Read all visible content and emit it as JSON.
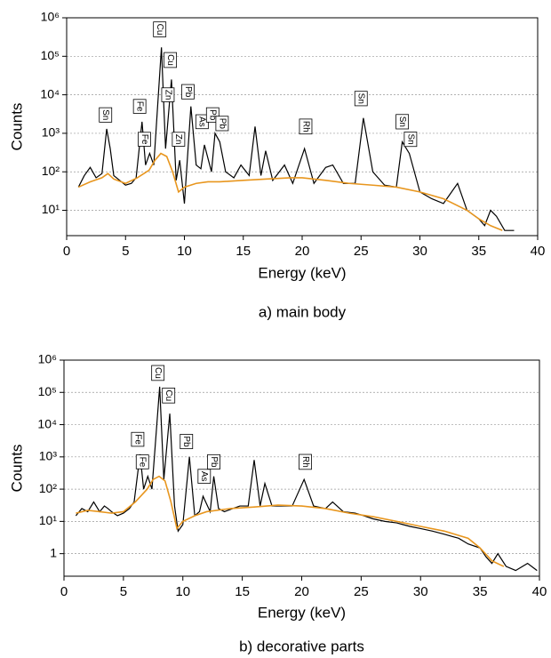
{
  "chart_data": [
    {
      "type": "line",
      "xlabel": "Energy (keV)",
      "ylabel": "Counts",
      "caption": "a) main body",
      "xlim": [
        0,
        40
      ],
      "xticks": [
        0,
        5,
        10,
        15,
        20,
        25,
        30,
        35,
        40
      ],
      "yscale": "log",
      "ylim": [
        2.2,
        1000000
      ],
      "yticks": [
        {
          "value": 10,
          "label": "10¹"
        },
        {
          "value": 100,
          "label": "10²"
        },
        {
          "value": 1000,
          "label": "10³"
        },
        {
          "value": 10000,
          "label": "10⁴"
        },
        {
          "value": 100000,
          "label": "10⁵"
        },
        {
          "value": 1000000,
          "label": "10⁶"
        }
      ],
      "grid": true,
      "series": [
        {
          "color": "#000000",
          "x": [
            1,
            1.5,
            2,
            2.5,
            3,
            3.4,
            3.7,
            4,
            4.5,
            5,
            5.5,
            5.9,
            6.4,
            6.7,
            7.05,
            7.4,
            8.05,
            8.4,
            8.9,
            9.3,
            9.6,
            10,
            10.55,
            11,
            11.4,
            11.7,
            12.3,
            12.6,
            13,
            13.5,
            14.2,
            14.8,
            15.5,
            16,
            16.5,
            16.9,
            17.5,
            18.5,
            19.2,
            20.2,
            21,
            22,
            22.6,
            23.5,
            24.5,
            25.2,
            26,
            27,
            28,
            28.5,
            29.1,
            30,
            31,
            32,
            33.2,
            34,
            35,
            35.5,
            36,
            36.5,
            37.2,
            38
          ],
          "values": [
            40,
            80,
            130,
            70,
            90,
            1300,
            400,
            80,
            60,
            45,
            50,
            70,
            2000,
            150,
            300,
            150,
            170000,
            400,
            25000,
            60,
            200,
            15,
            5000,
            150,
            120,
            500,
            100,
            1000,
            600,
            100,
            70,
            150,
            80,
            1500,
            80,
            350,
            60,
            150,
            50,
            400,
            50,
            130,
            150,
            50,
            50,
            2500,
            100,
            45,
            40,
            600,
            300,
            30,
            20,
            15,
            50,
            10,
            6,
            4,
            10,
            7,
            3,
            3
          ]
        },
        {
          "color": "#e8961e",
          "x": [
            1,
            2,
            3,
            3.5,
            4,
            5,
            6,
            7,
            7.5,
            8,
            8.5,
            9,
            9.5,
            10,
            11,
            12,
            13,
            15,
            17,
            19,
            20,
            22,
            24,
            26,
            28,
            30,
            32,
            34,
            35,
            36,
            37
          ],
          "values": [
            40,
            55,
            70,
            90,
            65,
            50,
            70,
            110,
            200,
            300,
            250,
            100,
            30,
            40,
            50,
            55,
            55,
            60,
            65,
            70,
            70,
            60,
            50,
            45,
            40,
            30,
            20,
            10,
            6,
            4,
            3
          ]
        }
      ],
      "annotations": [
        {
          "text": "Sn",
          "x": 3.3,
          "y": 3000
        },
        {
          "text": "Fe",
          "x": 6.2,
          "y": 5000
        },
        {
          "text": "Fe",
          "x": 6.6,
          "y": 700
        },
        {
          "text": "Cu",
          "x": 7.9,
          "y": 500000
        },
        {
          "text": "Cu",
          "x": 8.8,
          "y": 80000
        },
        {
          "text": "Zn",
          "x": 8.6,
          "y": 10000
        },
        {
          "text": "Zn",
          "x": 9.5,
          "y": 700
        },
        {
          "text": "Pb",
          "x": 10.3,
          "y": 12000
        },
        {
          "text": "As",
          "x": 11.5,
          "y": 2000
        },
        {
          "text": "Pb",
          "x": 12.4,
          "y": 3000
        },
        {
          "text": "Pb",
          "x": 13.2,
          "y": 1800
        },
        {
          "text": "Rh",
          "x": 20.3,
          "y": 1500
        },
        {
          "text": "Sn",
          "x": 25.0,
          "y": 8000
        },
        {
          "text": "Sn",
          "x": 28.5,
          "y": 2000
        },
        {
          "text": "Sn",
          "x": 29.2,
          "y": 700
        }
      ]
    },
    {
      "type": "line",
      "xlabel": "Energy (keV)",
      "ylabel": "Counts",
      "caption": "b) decorative parts",
      "xlim": [
        0,
        40
      ],
      "xticks": [
        0,
        5,
        10,
        15,
        20,
        25,
        30,
        35,
        40
      ],
      "yscale": "log",
      "ylim": [
        0.2,
        1000000
      ],
      "yticks": [
        1,
        {
          "value": 10,
          "label": "10¹"
        },
        {
          "value": 100,
          "label": "10²"
        },
        {
          "value": 1000,
          "label": "10³"
        },
        {
          "value": 10000,
          "label": "10⁴"
        },
        {
          "value": 100000,
          "label": "10⁵"
        },
        {
          "value": 1000000,
          "label": "10⁶"
        }
      ],
      "grid": true,
      "series": [
        {
          "color": "#000000",
          "x": [
            1,
            1.5,
            2,
            2.5,
            3,
            3.4,
            3.7,
            4,
            4.5,
            5,
            5.5,
            5.9,
            6.4,
            6.7,
            7.05,
            7.4,
            8.05,
            8.4,
            8.9,
            9.3,
            9.6,
            10,
            10.55,
            11,
            11.4,
            11.7,
            12.3,
            12.6,
            13,
            13.5,
            14.2,
            14.8,
            15.5,
            16,
            16.5,
            16.9,
            17.5,
            18.5,
            19.2,
            20.2,
            21,
            22,
            22.6,
            23.5,
            24.5,
            25.2,
            26,
            27,
            28,
            28.5,
            29.1,
            30,
            31,
            32,
            33.2,
            34,
            35,
            35.5,
            36,
            36.5,
            37.2,
            38,
            39,
            39.8
          ],
          "values": [
            15,
            25,
            20,
            40,
            20,
            30,
            25,
            20,
            15,
            18,
            25,
            40,
            1200,
            100,
            250,
            100,
            150000,
            200,
            22000,
            30,
            5,
            8,
            1000,
            15,
            20,
            60,
            20,
            250,
            25,
            20,
            25,
            30,
            30,
            800,
            30,
            150,
            30,
            30,
            30,
            200,
            30,
            25,
            40,
            20,
            18,
            15,
            12,
            10,
            9,
            8,
            7,
            6,
            5,
            4,
            3,
            2,
            1.5,
            0.8,
            0.5,
            1,
            0.4,
            0.3,
            0.5,
            0.3
          ]
        },
        {
          "color": "#e8961e",
          "x": [
            1,
            2,
            3,
            4,
            5,
            6,
            7,
            7.5,
            8,
            8.5,
            9,
            9.5,
            10,
            11,
            12,
            14,
            16,
            18,
            20,
            22,
            24,
            26,
            28,
            30,
            32,
            34,
            35,
            36,
            37
          ],
          "values": [
            18,
            22,
            20,
            18,
            20,
            40,
            100,
            200,
            250,
            180,
            40,
            6,
            10,
            15,
            20,
            25,
            28,
            32,
            30,
            25,
            18,
            14,
            10,
            7,
            5,
            3,
            1.5,
            0.6,
            0.4
          ]
        }
      ],
      "annotations": [
        {
          "text": "Fe",
          "x": 6.2,
          "y": 3500
        },
        {
          "text": "Fe",
          "x": 6.6,
          "y": 700
        },
        {
          "text": "Cu",
          "x": 7.9,
          "y": 400000
        },
        {
          "text": "Cu",
          "x": 8.8,
          "y": 80000
        },
        {
          "text": "Pb",
          "x": 10.3,
          "y": 3000
        },
        {
          "text": "As",
          "x": 11.8,
          "y": 250
        },
        {
          "text": "Pb",
          "x": 12.6,
          "y": 700
        },
        {
          "text": "Rh",
          "x": 20.3,
          "y": 700
        }
      ]
    }
  ]
}
